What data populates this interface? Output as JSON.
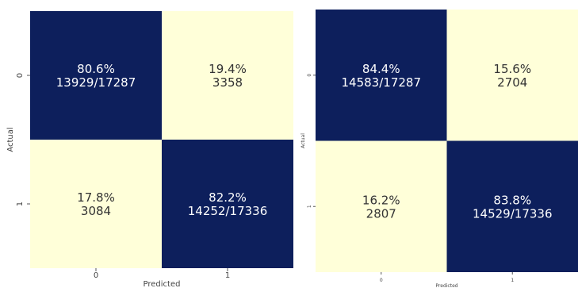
{
  "colors": {
    "dark": "#0d1f5c",
    "light": "#ffffd9",
    "text_on_dark": "#ffffff",
    "text_on_light": "#333333",
    "tick_mark": "#555555"
  },
  "chart_data": [
    {
      "type": "heatmap",
      "title": "",
      "xlabel": "Predicted",
      "ylabel": "Actual",
      "x_categories": [
        "0",
        "1"
      ],
      "y_categories": [
        "0",
        "1"
      ],
      "grid": false,
      "legend": "none",
      "cells": [
        [
          {
            "percent": "80.6%",
            "count": "13929/17287",
            "shade": "dark"
          },
          {
            "percent": "19.4%",
            "count": "3358",
            "shade": "light"
          }
        ],
        [
          {
            "percent": "17.8%",
            "count": "3084",
            "shade": "light"
          },
          {
            "percent": "82.2%",
            "count": "14252/17336",
            "shade": "dark"
          }
        ]
      ]
    },
    {
      "type": "heatmap",
      "title": "",
      "xlabel": "Predicted",
      "ylabel": "Actual",
      "x_categories": [
        "0",
        "1"
      ],
      "y_categories": [
        "0",
        "1"
      ],
      "grid": false,
      "legend": "none",
      "cells": [
        [
          {
            "percent": "84.4%",
            "count": "14583/17287",
            "shade": "dark"
          },
          {
            "percent": "15.6%",
            "count": "2704",
            "shade": "light"
          }
        ],
        [
          {
            "percent": "16.2%",
            "count": "2807",
            "shade": "light"
          },
          {
            "percent": "83.8%",
            "count": "14529/17336",
            "shade": "dark"
          }
        ]
      ]
    }
  ]
}
